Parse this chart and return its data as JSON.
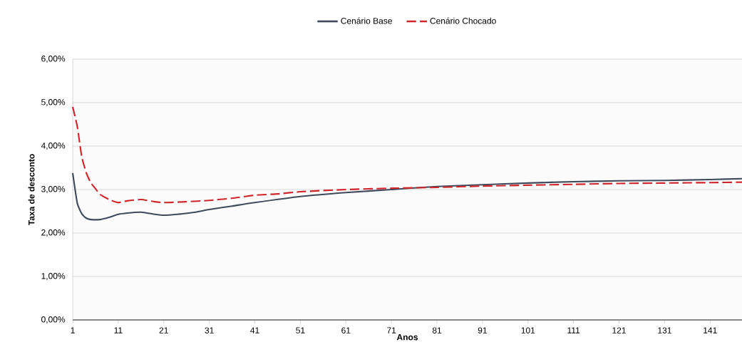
{
  "chart_data": {
    "type": "line",
    "xlabel": "Anos",
    "ylabel": "Taxa de desconto",
    "xlim": [
      1,
      148
    ],
    "xticks": [
      1,
      11,
      21,
      31,
      41,
      51,
      61,
      71,
      81,
      91,
      101,
      111,
      121,
      131,
      141
    ],
    "ylim": [
      0,
      6
    ],
    "yticks": [
      {
        "value": 0,
        "label": "0,00%"
      },
      {
        "value": 1,
        "label": "1,00%"
      },
      {
        "value": 2,
        "label": "2,00%"
      },
      {
        "value": 3,
        "label": "3,00%"
      },
      {
        "value": 4,
        "label": "4,00%"
      },
      {
        "value": 5,
        "label": "5,00%"
      },
      {
        "value": 6,
        "label": "6,00%"
      }
    ],
    "grid": "y",
    "legend": "top",
    "marker": "none",
    "series": [
      {
        "name": "Cenário Base",
        "color": "#3f4a5c",
        "line_style": "solid",
        "x": [
          1,
          2,
          3,
          4,
          5,
          7,
          9,
          11,
          13,
          16,
          19,
          21,
          24,
          28,
          31,
          36,
          41,
          51,
          61,
          71,
          81,
          91,
          101,
          111,
          121,
          131,
          141,
          148
        ],
        "values": [
          3.38,
          2.69,
          2.44,
          2.34,
          2.31,
          2.31,
          2.36,
          2.43,
          2.46,
          2.48,
          2.43,
          2.41,
          2.43,
          2.48,
          2.54,
          2.62,
          2.7,
          2.84,
          2.93,
          3.0,
          3.07,
          3.11,
          3.15,
          3.18,
          3.2,
          3.21,
          3.23,
          3.25
        ]
      },
      {
        "name": "Cenário Chocado",
        "color": "#d0262b",
        "line_style": "dashed",
        "x": [
          1,
          2,
          3,
          4,
          5,
          6,
          7,
          9,
          11,
          13,
          16,
          19,
          21,
          26,
          31,
          36,
          41,
          46,
          51,
          61,
          71,
          81,
          91,
          101,
          111,
          121,
          131,
          141,
          148
        ],
        "values": [
          4.9,
          4.45,
          3.75,
          3.38,
          3.15,
          3.02,
          2.89,
          2.77,
          2.7,
          2.74,
          2.77,
          2.72,
          2.7,
          2.72,
          2.75,
          2.8,
          2.87,
          2.9,
          2.95,
          3.0,
          3.03,
          3.05,
          3.08,
          3.1,
          3.12,
          3.14,
          3.15,
          3.16,
          3.17
        ]
      }
    ]
  }
}
